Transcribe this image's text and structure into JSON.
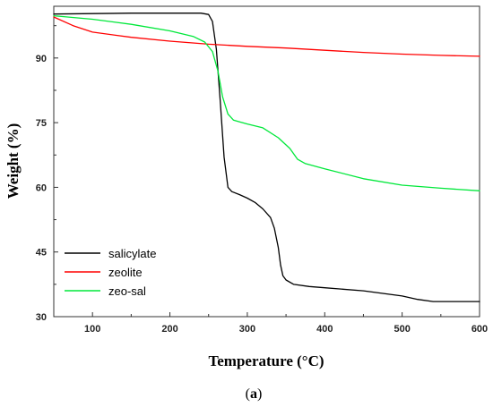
{
  "chart_data": {
    "type": "line",
    "title": "",
    "xlabel": "Temperature (°C)",
    "ylabel": "Weight (%)",
    "caption_prefix": "(",
    "caption_letter": "a",
    "caption_suffix": ")",
    "xlim": [
      50,
      600
    ],
    "ylim": [
      30,
      102
    ],
    "xticks": [
      100,
      200,
      300,
      400,
      500,
      600
    ],
    "yticks": [
      30,
      45,
      60,
      75,
      90
    ],
    "grid": false,
    "legend_position": "bottom-left",
    "series": [
      {
        "name": "salicylate",
        "color": "#000000",
        "x": [
          50,
          100,
          150,
          200,
          240,
          250,
          255,
          260,
          265,
          270,
          275,
          280,
          290,
          300,
          310,
          320,
          330,
          335,
          340,
          343,
          346,
          350,
          360,
          380,
          400,
          450,
          500,
          520,
          540,
          560,
          600
        ],
        "y": [
          100.2,
          100.3,
          100.4,
          100.4,
          100.4,
          100.1,
          98.5,
          92,
          80,
          67,
          60,
          59,
          58.3,
          57.5,
          56.5,
          55,
          53,
          50.5,
          46,
          42,
          39.5,
          38.5,
          37.5,
          37,
          36.7,
          36,
          34.8,
          34,
          33.5,
          33.5,
          33.5
        ]
      },
      {
        "name": "zeolite",
        "color": "#ff0000",
        "x": [
          50,
          75,
          100,
          150,
          200,
          250,
          300,
          350,
          400,
          450,
          500,
          550,
          600
        ],
        "y": [
          99.5,
          97.5,
          96,
          94.8,
          93.9,
          93.2,
          92.7,
          92.3,
          91.8,
          91.3,
          90.9,
          90.6,
          90.4
        ],
        "show_in_legend": true
      },
      {
        "name": "zeo-sal",
        "color": "#00e83a",
        "x": [
          50,
          100,
          150,
          200,
          230,
          245,
          255,
          262,
          268,
          275,
          282,
          290,
          300,
          320,
          340,
          355,
          365,
          375,
          400,
          450,
          500,
          550,
          600
        ],
        "y": [
          99.8,
          99,
          97.8,
          96.3,
          95,
          93.7,
          91.5,
          87,
          81,
          77,
          75.6,
          75.2,
          74.7,
          73.8,
          71.5,
          69,
          66.5,
          65.5,
          64.3,
          62,
          60.5,
          59.8,
          59.2
        ]
      }
    ]
  }
}
